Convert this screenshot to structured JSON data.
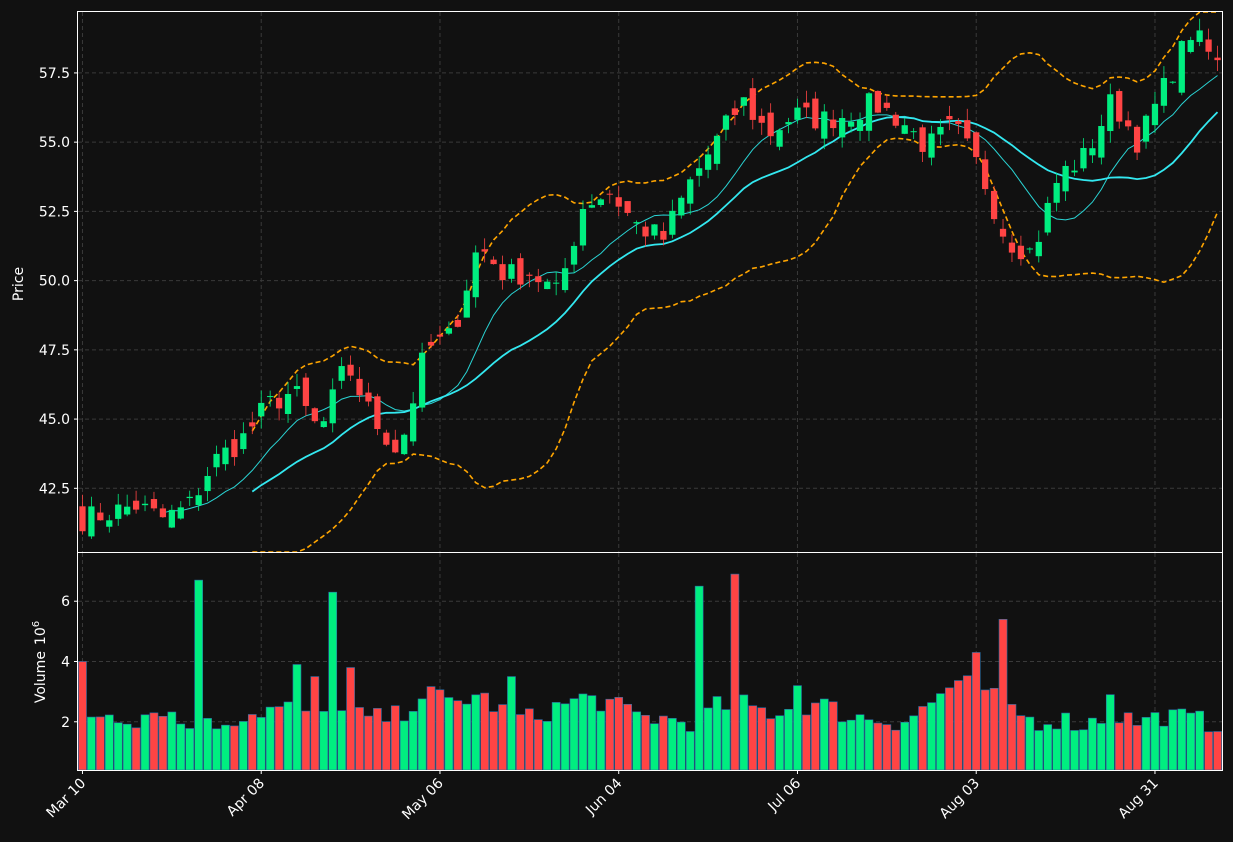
{
  "chart_data": {
    "type": "candlestick",
    "x_ticks": [
      "Mar 10",
      "Apr 08",
      "May 06",
      "Jun 04",
      "Jul 06",
      "Aug 03",
      "Aug 31"
    ],
    "price_panel": {
      "ylabel": "Price",
      "y_ticks": [
        "42.5",
        "45.0",
        "47.5",
        "50.0",
        "52.5",
        "55.0",
        "57.5"
      ],
      "ylim": [
        40.2,
        59.7
      ],
      "series": [
        {
          "name": "",
          "style": "thin cyan line"
        },
        {
          "name": "",
          "style": "thick cyan line"
        },
        {
          "name": "",
          "style": "orange dashed upper band"
        },
        {
          "name": "",
          "style": "orange dashed lower band"
        }
      ]
    },
    "volume_panel": {
      "ylabel": "Volume",
      "ylabel_exp": "10",
      "ylabel_sup": "6",
      "y_ticks": [
        "2",
        "4",
        "6"
      ],
      "ylim": [
        0.4,
        7.6
      ]
    },
    "close_anchors": [
      41.4,
      41.6,
      41.9,
      41.4,
      41.8,
      43.5,
      44.2,
      45.5,
      46.0,
      44.5,
      47.0,
      45.0,
      43.8,
      47.5,
      48.0,
      51.3,
      50.2,
      50.3,
      49.5,
      52.8,
      53.2,
      52.0,
      51.5,
      53.5,
      55.0,
      56.5,
      55.3,
      56.0,
      55.8,
      56.0,
      56.4,
      55.8,
      54.8,
      55.6,
      54.0,
      51.5,
      51.0,
      53.8,
      54.5,
      56.5,
      55.0,
      57.0,
      59.0,
      57.8
    ],
    "volume_anchors": [
      2.2,
      2.3,
      2.1,
      2.5,
      1.8,
      1.9,
      2.2,
      2.4,
      2.5,
      2.2,
      2.3,
      2.1,
      2.2,
      3.0,
      2.6,
      2.9,
      2.3,
      2.1,
      2.5,
      2.8,
      2.6,
      2.2,
      2.1,
      2.0,
      2.5,
      2.6,
      2.3,
      2.5,
      2.6,
      2.2,
      2.1,
      2.0,
      2.5,
      3.3,
      3.2,
      2.6,
      2.0,
      2.1,
      1.9,
      2.3,
      2.0,
      2.2,
      2.1,
      1.9
    ],
    "volume_spikes": [
      [
        0,
        4.0
      ],
      [
        13,
        6.7
      ],
      [
        24,
        3.9
      ],
      [
        26,
        3.5
      ],
      [
        28,
        6.3
      ],
      [
        30,
        3.8
      ],
      [
        48,
        3.5
      ],
      [
        69,
        6.5
      ],
      [
        73,
        6.9
      ],
      [
        80,
        3.2
      ],
      [
        100,
        4.3
      ],
      [
        103,
        5.4
      ],
      [
        115,
        2.9
      ]
    ],
    "colors": {
      "background": "#111111",
      "up": "#00ee80",
      "down": "#ff4444",
      "ma_fast": "#2ad4d4",
      "ma_slow": "#33e8f0",
      "band": "#ffa500",
      "grid": "#3a3a3a",
      "axis": "#ffffff"
    }
  }
}
